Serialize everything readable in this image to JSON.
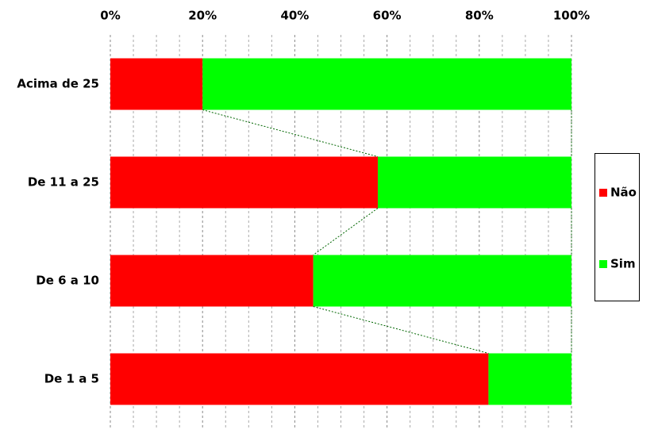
{
  "chart_data": {
    "type": "stacked-bar-horizontal",
    "categories": [
      "Acima de 25",
      "De 11 a 25",
      "De 6 a 10",
      "De 1 a 5"
    ],
    "series": [
      {
        "name": "Não",
        "color": "#ff0000",
        "values": [
          20,
          58,
          44,
          82
        ]
      },
      {
        "name": "Sim",
        "color": "#00ff00",
        "values": [
          80,
          42,
          56,
          18
        ]
      }
    ],
    "xlim": [
      0,
      100
    ],
    "xticks": [
      {
        "value": 0,
        "label": "0%"
      },
      {
        "value": 20,
        "label": "20%"
      },
      {
        "value": 40,
        "label": "40%"
      },
      {
        "value": 60,
        "label": "60%"
      },
      {
        "value": 80,
        "label": "80%"
      },
      {
        "value": 100,
        "label": "100%"
      }
    ],
    "minor_xticks": [
      5,
      10,
      15,
      25,
      30,
      35,
      45,
      50,
      55,
      65,
      70,
      75,
      85,
      90,
      95
    ],
    "grid": true,
    "legend": "right"
  }
}
